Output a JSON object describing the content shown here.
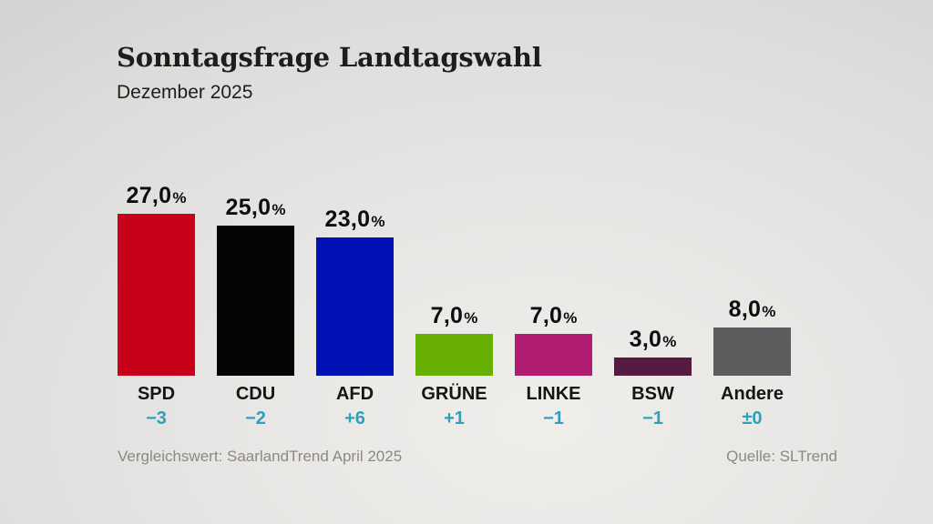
{
  "header": {
    "title": "Sonntagsfrage Landtagswahl",
    "subtitle": "Dezember 2025"
  },
  "chart_data": {
    "type": "bar",
    "title": "Sonntagsfrage Landtagswahl",
    "subtitle": "Dezember 2025",
    "categories": [
      "SPD",
      "CDU",
      "AFD",
      "GRÜNE",
      "LINKE",
      "BSW",
      "Andere"
    ],
    "values": [
      27.0,
      25.0,
      23.0,
      7.0,
      7.0,
      3.0,
      8.0
    ],
    "value_labels": [
      "27,0",
      "25,0",
      "23,0",
      "7,0",
      "7,0",
      "3,0",
      "8,0"
    ],
    "unit": "%",
    "changes": [
      "−3",
      "−2",
      "+6",
      "+1",
      "−1",
      "−1",
      "±0"
    ],
    "bar_colors": [
      "#c80019",
      "#050505",
      "#0012b3",
      "#67af02",
      "#b01d71",
      "#551b40",
      "#5d5d5f"
    ],
    "change_color": "#2e9fbe",
    "ylim": [
      0,
      30
    ],
    "grid": false,
    "legend": false,
    "xlabel": "",
    "ylabel": ""
  },
  "footer": {
    "comparison_note": "Vergleichswert: SaarlandTrend April 2025",
    "source": "Quelle: SLTrend"
  }
}
